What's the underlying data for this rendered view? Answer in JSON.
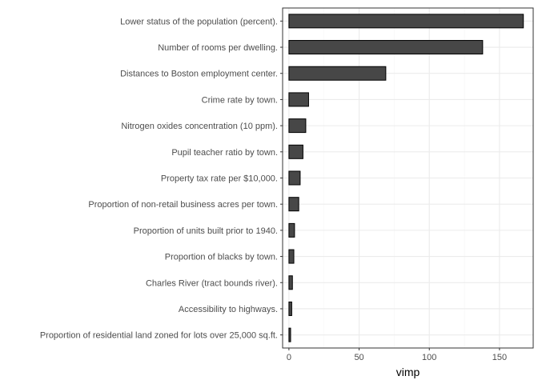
{
  "chart_data": {
    "type": "bar",
    "orientation": "horizontal",
    "categories": [
      "Lower status of the population (percent).",
      "Number of rooms per dwelling.",
      "Distances to Boston employment center.",
      "Crime rate by town.",
      "Nitrogen oxides concentration (10 ppm).",
      "Pupil teacher ratio by town.",
      "Property tax rate per $10,000.",
      "Proportion of non-retail business acres per town.",
      "Proportion of units built prior to 1940.",
      "Proportion of blacks by town.",
      "Charles River (tract bounds river).",
      "Accessibility to highways.",
      "Proportion of residential land zoned for lots over 25,000 sq.ft."
    ],
    "values": [
      167,
      138,
      69,
      14,
      12,
      10,
      8,
      7,
      4,
      3.5,
      2.5,
      2,
      1.2
    ],
    "title": "",
    "xlabel": "vimp",
    "ylabel": "",
    "xlim": [
      -4.5,
      174
    ],
    "xticks": [
      0,
      50,
      100,
      150
    ],
    "xtick_labels": [
      "0",
      "50",
      "100",
      "150"
    ],
    "grid": true,
    "theme": "bw",
    "colors": {
      "bar_fill": "#474747",
      "bar_stroke": "#000000",
      "panel_border": "#333333",
      "grid_major": "#ebebeb",
      "grid_minor": "#f5f5f5"
    }
  }
}
